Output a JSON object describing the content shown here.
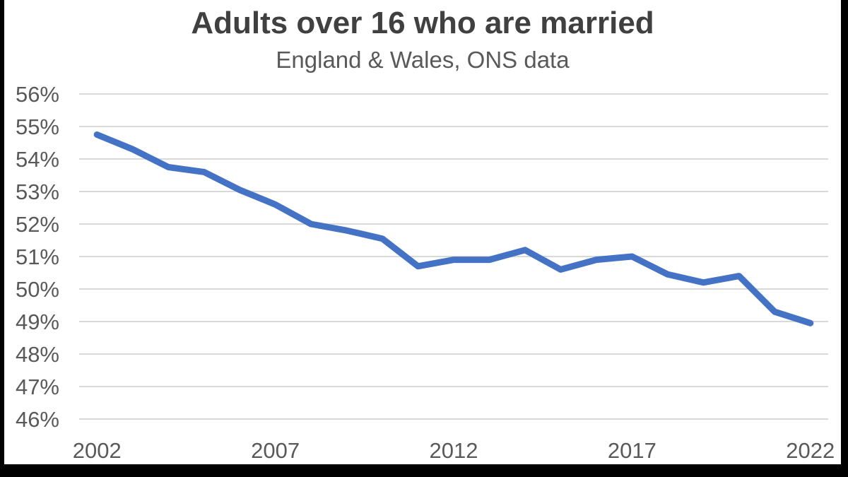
{
  "chart_data": {
    "type": "line",
    "title": "Adults over 16 who are married",
    "subtitle": "England & Wales, ONS data",
    "x": [
      2002,
      2003,
      2004,
      2005,
      2006,
      2007,
      2008,
      2009,
      2010,
      2011,
      2012,
      2013,
      2014,
      2015,
      2016,
      2017,
      2018,
      2019,
      2020,
      2021,
      2022
    ],
    "values": [
      54.75,
      54.3,
      53.75,
      53.6,
      53.05,
      52.6,
      52.0,
      51.8,
      51.55,
      50.7,
      50.9,
      50.9,
      51.2,
      50.6,
      50.9,
      51.0,
      50.45,
      50.2,
      50.4,
      49.3,
      48.95
    ],
    "ylim": [
      46,
      56
    ],
    "ytick_labels": [
      "56%",
      "55%",
      "54%",
      "53%",
      "52%",
      "51%",
      "50%",
      "49%",
      "48%",
      "47%",
      "46%"
    ],
    "xtick_labels": [
      "2002",
      "2007",
      "2012",
      "2017",
      "2022"
    ],
    "grid": "horizontal",
    "legend": "none",
    "colors": {
      "line": "#4472C4",
      "gridline": "#D9D9D9",
      "axis_labels": "#595959",
      "title": "#404040",
      "subtitle": "#595959",
      "background": "#FFFFFF",
      "letterbox": "#000000"
    }
  }
}
